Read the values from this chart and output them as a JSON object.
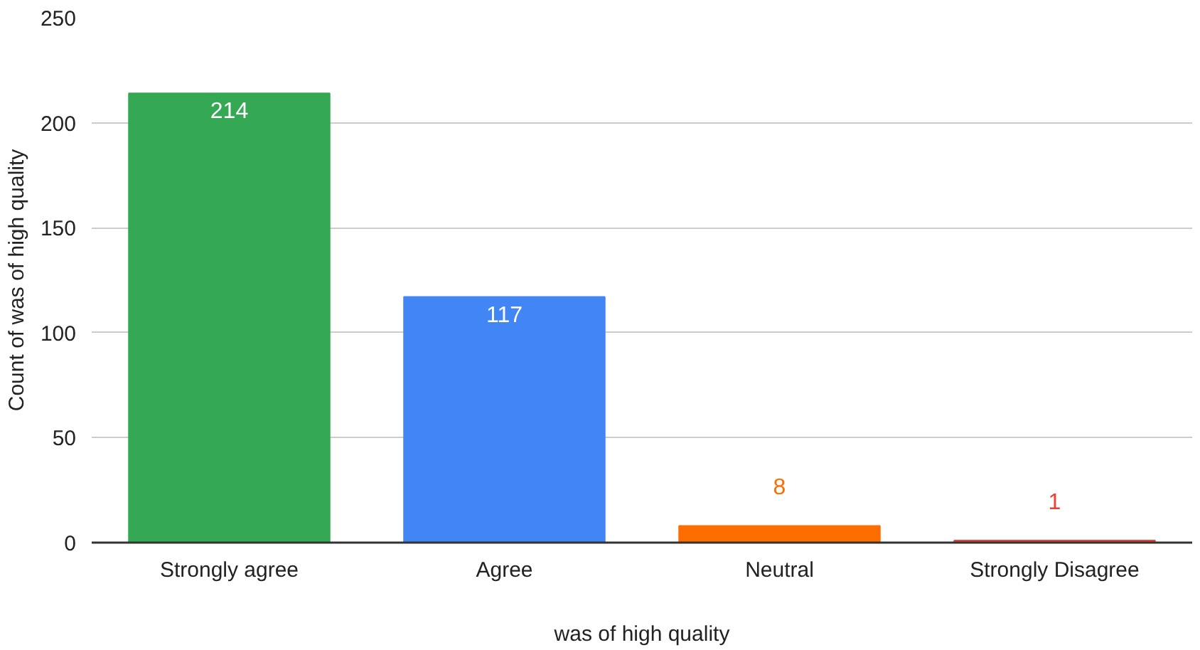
{
  "chart_data": {
    "type": "bar",
    "xlabel": "was of high quality",
    "ylabel": "Count of was of high quality",
    "categories": [
      "Strongly agree",
      "Agree",
      "Neutral",
      "Strongly Disagree"
    ],
    "values": [
      214,
      117,
      8,
      1
    ],
    "colors": [
      "#34a853",
      "#4285f4",
      "#ff6d01",
      "#ea4335"
    ],
    "ylim": [
      0,
      250
    ],
    "yticks": [
      0,
      50,
      100,
      150,
      200,
      250
    ],
    "grid": "y",
    "data_labels": true
  }
}
